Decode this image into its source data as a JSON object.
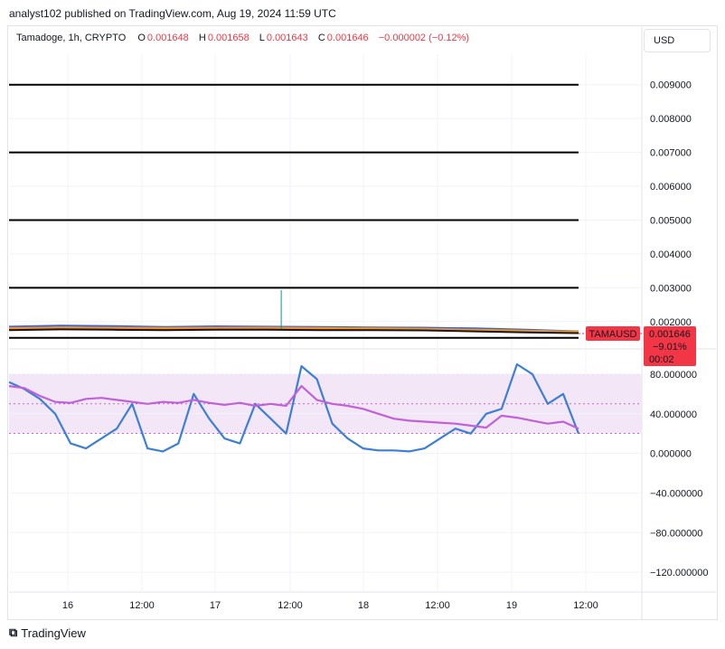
{
  "publisher": "analyst102 published on TradingView.com, Aug 19, 2024 11:59 UTC",
  "legend": {
    "symbol": "Tamadoge, 1h, CRYPTO",
    "o_label": "O",
    "o_value": "0.001648",
    "h_label": "H",
    "h_value": "0.001658",
    "l_label": "L",
    "l_value": "0.001643",
    "c_label": "C",
    "c_value": "0.001646",
    "change": "−0.000002 (−0.12%)"
  },
  "currency": "USD",
  "price_tag": {
    "symbol": "TAMAUSD",
    "price": "0.001646",
    "change_pct": "−9.01%",
    "countdown": "00:02",
    "color": "#f23645"
  },
  "footer_brand": "TradingView",
  "chart_data": [
    {
      "type": "line",
      "pane": "price",
      "price_axis_ticks": [
        "0.009000",
        "0.008000",
        "0.007000",
        "0.006000",
        "0.005000",
        "0.004000",
        "0.003000",
        "0.002000"
      ],
      "ylim": [
        0.0013,
        0.0099
      ],
      "horizontal_levels": [
        0.009,
        0.007,
        0.005,
        0.003,
        0.00152
      ],
      "time_labels": [
        "16",
        "12:00",
        "17",
        "12:00",
        "18",
        "12:00",
        "19",
        "12:00"
      ],
      "spike": {
        "time_index": 0.37,
        "high": 0.00293,
        "base": 0.00178
      },
      "series": [
        {
          "color": "#2962ff",
          "values": [
            0.00185,
            0.00188,
            0.00187,
            0.00184,
            0.00186,
            0.00185,
            0.00184,
            0.00183,
            0.00182,
            0.0018,
            0.00176,
            0.00171
          ]
        },
        {
          "color": "#f7525f",
          "values": [
            0.00178,
            0.0018,
            0.00179,
            0.00178,
            0.0018,
            0.00179,
            0.00178,
            0.00178,
            0.00176,
            0.00173,
            0.0017,
            0.00168
          ]
        },
        {
          "color": "#ff9800",
          "values": [
            0.00181,
            0.00183,
            0.00182,
            0.00181,
            0.00182,
            0.00182,
            0.00181,
            0.0018,
            0.00179,
            0.00176,
            0.00173,
            0.0017
          ]
        },
        {
          "color": "#131722",
          "values": [
            0.00175,
            0.00177,
            0.00176,
            0.00175,
            0.00176,
            0.00176,
            0.00175,
            0.00175,
            0.00174,
            0.00171,
            0.00168,
            0.00166
          ]
        }
      ]
    },
    {
      "type": "line",
      "pane": "oscillator",
      "oscillator_axis_ticks": [
        "80.000000",
        "40.000000",
        "0.000000",
        "−40.000000",
        "−80.000000",
        "−120.000000"
      ],
      "ylim": [
        -140,
        100
      ],
      "band": [
        20,
        80
      ],
      "series": [
        {
          "name": "",
          "color": "#3d7fd6",
          "values": [
            72,
            65,
            55,
            40,
            10,
            5,
            15,
            25,
            50,
            5,
            2,
            10,
            60,
            35,
            15,
            10,
            50,
            35,
            20,
            88,
            75,
            30,
            15,
            5,
            3,
            3,
            2,
            5,
            15,
            25,
            20,
            40,
            45,
            90,
            80,
            50,
            60,
            20
          ]
        },
        {
          "name": "",
          "color": "#c061d9",
          "values": [
            68,
            66,
            58,
            52,
            51,
            55,
            56,
            54,
            52,
            50,
            52,
            51,
            54,
            51,
            49,
            51,
            48,
            50,
            48,
            68,
            54,
            50,
            48,
            45,
            40,
            35,
            33,
            32,
            31,
            30,
            28,
            26,
            38,
            36,
            33,
            30,
            32,
            25
          ]
        }
      ]
    }
  ]
}
